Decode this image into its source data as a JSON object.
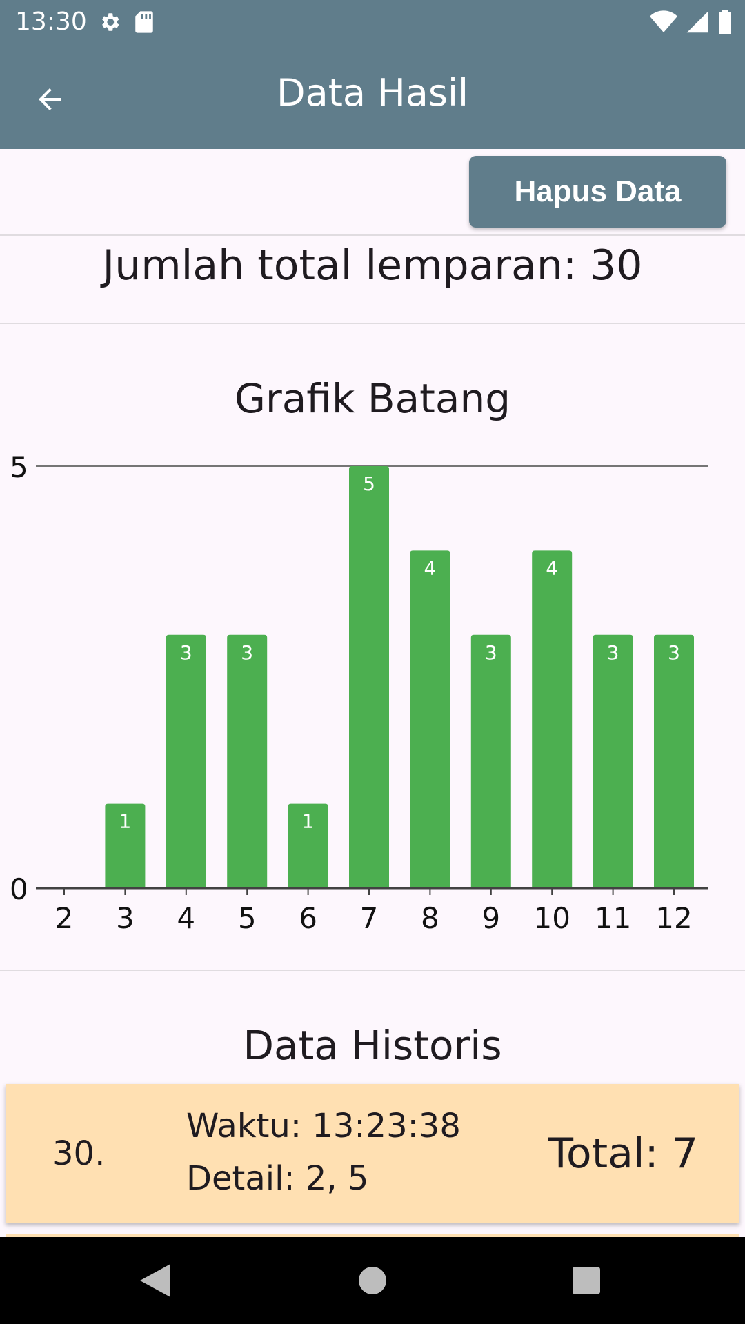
{
  "status_bar": {
    "time": "13:30",
    "icons_left": [
      "gear-icon",
      "sd-card-icon"
    ],
    "icons_right": [
      "wifi-icon",
      "signal-icon",
      "battery-icon"
    ]
  },
  "app_bar": {
    "title": "Data Hasil",
    "back_icon": "arrow-left-icon"
  },
  "actions": {
    "delete_label": "Hapus Data"
  },
  "summary": {
    "total_throws_text": "Jumlah total lemparan: 30"
  },
  "chart": {
    "title": "Grafik Batang"
  },
  "chart_data": {
    "type": "bar",
    "title": "Grafik Batang",
    "categories": [
      "2",
      "3",
      "4",
      "5",
      "6",
      "7",
      "8",
      "9",
      "10",
      "11",
      "12"
    ],
    "values": [
      0,
      1,
      3,
      3,
      1,
      5,
      4,
      3,
      4,
      3,
      3
    ],
    "ylim": [
      0,
      5
    ],
    "y_ticks": [
      "0",
      "5"
    ],
    "grid": false,
    "data_labels": true,
    "bar_color": "#4CAF50"
  },
  "history": {
    "title": "Data Historis",
    "items": [
      {
        "index": "30.",
        "time": "Waktu: 13:23:38",
        "detail": "Detail: 2, 5",
        "total": "Total: 7"
      }
    ]
  },
  "nav_bar": {
    "back_icon": "nav-back-icon",
    "home_icon": "nav-home-icon",
    "recents_icon": "nav-recents-icon"
  },
  "colors": {
    "primary": "#607D8B",
    "background": "#FDF7FD",
    "bar": "#4CAF50",
    "history_card": "#FFE0B2"
  }
}
